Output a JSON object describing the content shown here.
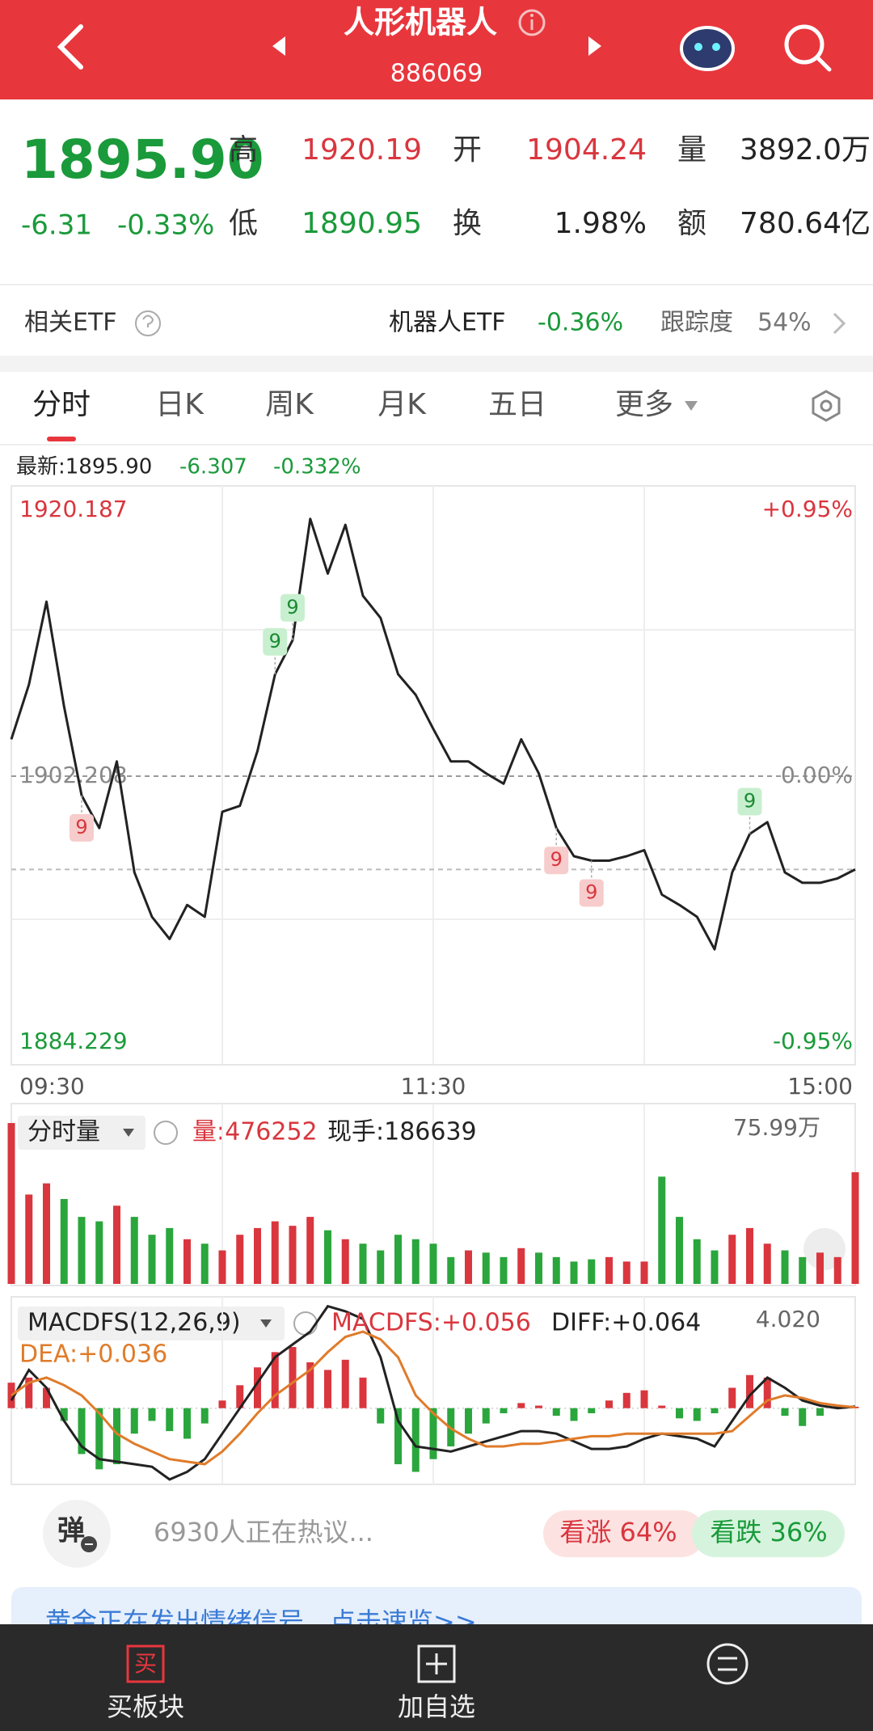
{
  "header": {
    "title": "人形机器人",
    "code": "886069"
  },
  "quote": {
    "price": "1895.90",
    "change": "-6.31",
    "change_pct": "-0.33%",
    "fields": [
      {
        "label": "高",
        "value": "1920.19",
        "color": "#d9363e"
      },
      {
        "label": "开",
        "value": "1904.24",
        "color": "#d9363e"
      },
      {
        "label": "量",
        "value": "3892.0万",
        "color": "#222222"
      },
      {
        "label": "低",
        "value": "1890.95",
        "color": "#1a9a3a"
      },
      {
        "label": "换",
        "value": "1.98%",
        "color": "#222222"
      },
      {
        "label": "额",
        "value": "780.64亿",
        "color": "#222222"
      }
    ]
  },
  "etf": {
    "label": "相关ETF",
    "name": "机器人ETF",
    "change": "-0.36%",
    "track_label": "跟踪度",
    "track": "54%"
  },
  "tabs": [
    "分时",
    "日K",
    "周K",
    "月K",
    "五日",
    "更多"
  ],
  "active_tab": 0,
  "latest": {
    "label": "最新:",
    "price": "1895.90",
    "change": "-6.307",
    "change_pct": "-0.332%"
  },
  "chart_data": [
    {
      "type": "line",
      "color": "#222222",
      "x": [
        "09:30",
        "09:35",
        "09:40",
        "09:45",
        "09:50",
        "09:55",
        "10:00",
        "10:05",
        "10:10",
        "10:15",
        "10:20",
        "10:25",
        "10:30",
        "10:35",
        "10:40",
        "10:45",
        "10:50",
        "10:55",
        "11:00",
        "11:05",
        "11:10",
        "11:15",
        "11:20",
        "11:25",
        "11:30",
        "13:05",
        "13:10",
        "13:15",
        "13:20",
        "13:25",
        "13:30",
        "13:35",
        "13:40",
        "13:45",
        "13:50",
        "13:55",
        "14:00",
        "14:05",
        "14:10",
        "14:15",
        "14:20",
        "14:25",
        "14:30",
        "14:35",
        "14:40",
        "14:45",
        "14:50",
        "14:55",
        "15:00"
      ],
      "values": [
        1904.7,
        1908.4,
        1914.0,
        1906.9,
        1900.9,
        1898.7,
        1903.2,
        1895.7,
        1892.7,
        1891.2,
        1893.5,
        1892.7,
        1899.8,
        1900.2,
        1903.9,
        1909.1,
        1911.4,
        1919.6,
        1915.9,
        1919.2,
        1914.4,
        1912.9,
        1909.1,
        1907.7,
        1905.4,
        1903.2,
        1903.2,
        1902.4,
        1901.7,
        1904.7,
        1902.4,
        1898.7,
        1896.8,
        1896.5,
        1896.5,
        1896.8,
        1897.2,
        1894.2,
        1893.5,
        1892.7,
        1890.5,
        1895.7,
        1898.3,
        1899.1,
        1895.7,
        1895.0,
        1895.0,
        1895.3,
        1895.9
      ],
      "ylim": [
        1884.229,
        1920.187
      ],
      "yticks": [
        1920.187,
        1902.208,
        1884.229
      ],
      "y2lim": [
        -0.95,
        0.95
      ],
      "y2ticks": [
        {
          "value": 0.95,
          "label": "+0.95%"
        },
        {
          "value": 0,
          "label": "0.00%"
        },
        {
          "value": -0.95,
          "label": "-0.95%"
        }
      ],
      "xticks": [
        "09:30",
        "11:30",
        "15:00"
      ],
      "up_color": "#d9363e",
      "down_color": "#1a9a3a",
      "markers": [
        {
          "x": "09:50",
          "label": "9",
          "position": "below",
          "color": "#d9363e",
          "fill": "#f7cccc"
        },
        {
          "x": "10:45",
          "label": "9",
          "position": "above",
          "color": "#1a8a34",
          "fill": "#c8efcf"
        },
        {
          "x": "10:50",
          "label": "9",
          "position": "above",
          "color": "#1a8a34",
          "fill": "#c8efcf"
        },
        {
          "x": "13:35",
          "label": "9",
          "position": "below",
          "color": "#d9363e",
          "fill": "#f7cccc"
        },
        {
          "x": "13:45",
          "label": "9",
          "position": "below",
          "color": "#d9363e",
          "fill": "#f7cccc"
        },
        {
          "x": "14:30",
          "label": "9",
          "position": "above",
          "color": "#1a8a34",
          "fill": "#c8efcf"
        }
      ]
    },
    {
      "type": "bar",
      "title": "分时量",
      "x": [
        "09:30",
        "09:35",
        "09:40",
        "09:45",
        "09:50",
        "09:55",
        "10:00",
        "10:05",
        "10:10",
        "10:15",
        "10:20",
        "10:25",
        "10:30",
        "10:35",
        "10:40",
        "10:45",
        "10:50",
        "10:55",
        "11:00",
        "11:05",
        "11:10",
        "11:15",
        "11:20",
        "11:25",
        "11:30",
        "13:05",
        "13:10",
        "13:15",
        "13:20",
        "13:25",
        "13:30",
        "13:35",
        "13:40",
        "13:45",
        "13:50",
        "13:55",
        "14:00",
        "14:05",
        "14:10",
        "14:15",
        "14:20",
        "14:25",
        "14:30",
        "14:35",
        "14:40",
        "14:45",
        "14:50",
        "14:55",
        "15:00"
      ],
      "values": [
        72,
        40,
        45,
        38,
        30,
        28,
        35,
        30,
        22,
        25,
        20,
        18,
        15,
        22,
        25,
        28,
        26,
        30,
        24,
        20,
        18,
        15,
        22,
        20,
        18,
        12,
        15,
        14,
        12,
        16,
        14,
        12,
        10,
        11,
        12,
        10,
        10,
        48,
        30,
        20,
        15,
        22,
        25,
        18,
        15,
        12,
        14,
        12,
        50
      ],
      "ylim": [
        0,
        75.99
      ],
      "yticks": [
        {
          "value": 75.99,
          "label": "75.99万"
        }
      ],
      "up_color": "#d9363e",
      "down_color": "#2aa63c"
    },
    {
      "type": "macd",
      "title": "MACDFS(12,26,9)",
      "x": [
        "09:30",
        "09:35",
        "09:40",
        "09:45",
        "09:50",
        "09:55",
        "10:00",
        "10:05",
        "10:10",
        "10:15",
        "10:20",
        "10:25",
        "10:30",
        "10:35",
        "10:40",
        "10:45",
        "10:50",
        "10:55",
        "11:00",
        "11:05",
        "11:10",
        "11:15",
        "11:20",
        "11:25",
        "11:30",
        "13:05",
        "13:10",
        "13:15",
        "13:20",
        "13:25",
        "13:30",
        "13:35",
        "13:40",
        "13:45",
        "13:50",
        "13:55",
        "14:00",
        "14:05",
        "14:10",
        "14:15",
        "14:20",
        "14:25",
        "14:30",
        "14:35",
        "14:40",
        "14:45",
        "14:50",
        "14:55",
        "15:00"
      ],
      "ylim": [
        -2.77,
        4.02
      ],
      "yticks": [
        {
          "value": 4.02,
          "label": "4.020"
        }
      ],
      "series": [
        {
          "name": "MACDFS:",
          "color": "#d9363e",
          "negative_color": "#2aa63c",
          "last_label": "+0.056",
          "values": [
            1.0,
            1.2,
            0.8,
            -0.5,
            -1.8,
            -2.4,
            -2.2,
            -1.0,
            -0.5,
            -0.9,
            -1.2,
            -0.6,
            0.3,
            0.9,
            1.6,
            2.2,
            2.4,
            1.8,
            1.5,
            1.9,
            1.2,
            -0.6,
            -2.2,
            -2.5,
            -2.0,
            -1.5,
            -1.0,
            -0.6,
            -0.2,
            0.2,
            0.1,
            -0.3,
            -0.5,
            -0.2,
            0.3,
            0.6,
            0.7,
            0.1,
            -0.4,
            -0.5,
            -0.2,
            0.8,
            1.3,
            1.2,
            -0.3,
            -0.7,
            -0.3,
            0.1,
            0.056
          ]
        },
        {
          "name": "DIFF:",
          "color": "#222222",
          "last_label": "+0.064",
          "values": [
            0.3,
            1.5,
            0.8,
            -0.5,
            -1.5,
            -2.0,
            -2.1,
            -2.2,
            -2.3,
            -2.8,
            -2.5,
            -2.0,
            -1.0,
            0.0,
            1.0,
            2.0,
            2.5,
            3.0,
            4.0,
            3.8,
            3.5,
            2.0,
            -0.5,
            -1.5,
            -1.6,
            -1.7,
            -1.5,
            -1.3,
            -1.1,
            -0.9,
            -0.9,
            -1.0,
            -1.3,
            -1.6,
            -1.6,
            -1.5,
            -1.2,
            -1.0,
            -1.1,
            -1.2,
            -1.5,
            -0.5,
            0.5,
            1.2,
            0.8,
            0.3,
            0.1,
            0.0,
            0.064
          ]
        },
        {
          "name": "DEA:",
          "color": "#e07b2a",
          "last_label": "+0.036",
          "values": [
            0.5,
            1.0,
            1.2,
            0.9,
            0.5,
            -0.2,
            -1.0,
            -1.4,
            -1.7,
            -2.0,
            -2.1,
            -2.2,
            -1.7,
            -1.0,
            -0.2,
            0.5,
            1.0,
            1.5,
            2.2,
            2.8,
            3.0,
            2.7,
            2.0,
            0.5,
            -0.2,
            -0.8,
            -1.2,
            -1.5,
            -1.5,
            -1.4,
            -1.4,
            -1.3,
            -1.2,
            -1.1,
            -1.1,
            -1.0,
            -1.0,
            -1.0,
            -1.0,
            -1.0,
            -1.0,
            -0.9,
            -0.3,
            0.3,
            0.5,
            0.4,
            0.2,
            0.1,
            0.036
          ]
        }
      ]
    }
  ],
  "volume_info": {
    "label": "量:",
    "value": "476252",
    "hand_label": "现手:",
    "hand": "186639"
  },
  "discussion": {
    "button": "弹",
    "text": "6930人正在热议...",
    "bull": "看涨 64%",
    "bear": "看跌 36%"
  },
  "banner": {
    "text": "黄金正在发出情绪信号，点击速览>>"
  },
  "nav": {
    "buy_icon": "买",
    "items": [
      "买板块",
      "加自选"
    ]
  }
}
